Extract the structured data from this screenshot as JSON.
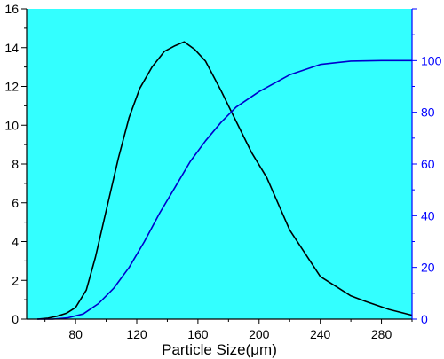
{
  "chart_data": {
    "type": "line",
    "title": "",
    "xlabel": "Particle Size(μm)",
    "ylabel_left": "",
    "ylabel_right": "",
    "xlim": [
      48,
      300
    ],
    "xticks": [
      80,
      120,
      160,
      200,
      240,
      280
    ],
    "ylim_left": [
      0,
      16
    ],
    "yticks_left": [
      0,
      2,
      4,
      6,
      8,
      10,
      12,
      14,
      16
    ],
    "ylim_right": [
      0,
      120
    ],
    "yticks_right": [
      0,
      20,
      40,
      60,
      80,
      100
    ],
    "plot_background": "#33ffff",
    "grid": false,
    "series": [
      {
        "axis": "left",
        "color": "#000000",
        "x": [
          55,
          62,
          68,
          74,
          80,
          87,
          93,
          100,
          108,
          115,
          122,
          130,
          138,
          145,
          151,
          158,
          165,
          175,
          185,
          195,
          205,
          220,
          240,
          260,
          270,
          285,
          300
        ],
        "y": [
          0,
          0.05,
          0.15,
          0.3,
          0.6,
          1.5,
          3.2,
          5.6,
          8.3,
          10.4,
          11.9,
          13.0,
          13.8,
          14.1,
          14.3,
          13.9,
          13.3,
          11.8,
          10.2,
          8.6,
          7.3,
          4.6,
          2.2,
          1.2,
          0.9,
          0.5,
          0.2
        ]
      },
      {
        "axis": "right",
        "color": "#0000cc",
        "x": [
          55,
          65,
          75,
          85,
          95,
          105,
          115,
          125,
          135,
          145,
          155,
          165,
          175,
          185,
          200,
          220,
          240,
          260,
          280,
          300
        ],
        "y": [
          0,
          0,
          0.5,
          2,
          6,
          12,
          20,
          30,
          41,
          51,
          61,
          69,
          76,
          82,
          88,
          94.5,
          98.5,
          99.8,
          100,
          100
        ]
      }
    ]
  }
}
